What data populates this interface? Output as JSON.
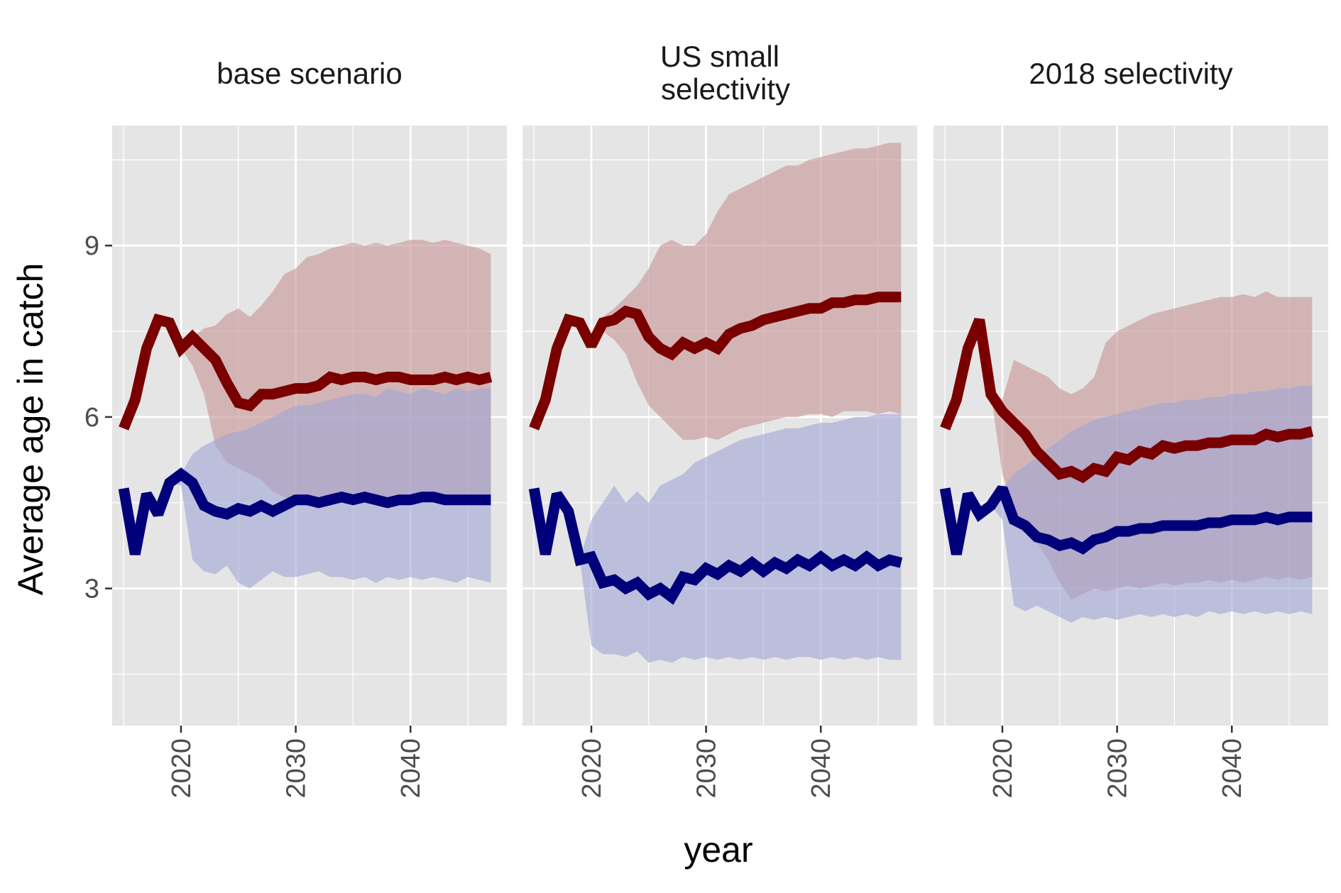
{
  "chart_data": {
    "type": "line",
    "ylabel": "Average age in catch",
    "xlabel": "year",
    "xlim": [
      2014.0,
      2048.4
    ],
    "ylim": [
      0.6,
      11.1
    ],
    "x_ticks": [
      2020,
      2030,
      2040
    ],
    "y_ticks": [
      3,
      6,
      9
    ],
    "colors": {
      "red_line": "#7a0000",
      "red_band": "#c99a9b",
      "blue_line": "#00007a",
      "blue_band": "#9fa5d6",
      "panel_bg": "#e5e5e5",
      "grid": "#ffffff"
    },
    "years": [
      2015,
      2016,
      2017,
      2018,
      2019,
      2020,
      2021,
      2022,
      2023,
      2024,
      2025,
      2026,
      2027,
      2028,
      2029,
      2030,
      2031,
      2032,
      2033,
      2034,
      2035,
      2036,
      2037,
      2038,
      2039,
      2040,
      2041,
      2042,
      2043,
      2044,
      2045,
      2046,
      2047
    ],
    "panels": [
      {
        "title": "base scenario",
        "series": [
          {
            "color": "red",
            "values": [
              5.8,
              6.3,
              7.2,
              7.7,
              7.65,
              7.2,
              7.4,
              7.2,
              7.0,
              6.6,
              6.25,
              6.2,
              6.4,
              6.4,
              6.45,
              6.5,
              6.5,
              6.55,
              6.7,
              6.65,
              6.7,
              6.7,
              6.65,
              6.7,
              6.7,
              6.65,
              6.65,
              6.65,
              6.7,
              6.65,
              6.7,
              6.65,
              6.7
            ],
            "lower": [
              5.8,
              6.3,
              7.2,
              7.7,
              7.65,
              7.2,
              6.9,
              6.4,
              5.5,
              5.2,
              5.1,
              5.0,
              4.9,
              4.7,
              4.6,
              4.55,
              4.6,
              4.55,
              4.6,
              4.55,
              4.6,
              4.55,
              4.6,
              4.55,
              4.6,
              4.55,
              4.6,
              4.55,
              4.6,
              4.55,
              4.6,
              4.55,
              4.6
            ],
            "upper": [
              5.8,
              6.3,
              7.2,
              7.7,
              7.65,
              7.3,
              7.4,
              7.55,
              7.6,
              7.8,
              7.9,
              7.75,
              7.95,
              8.2,
              8.5,
              8.6,
              8.8,
              8.85,
              8.95,
              9.0,
              9.05,
              9.0,
              9.05,
              9.0,
              9.05,
              9.1,
              9.1,
              9.05,
              9.1,
              9.05,
              9.0,
              8.95,
              8.85
            ]
          },
          {
            "color": "blue",
            "values": [
              4.75,
              3.6,
              4.65,
              4.3,
              4.85,
              5.0,
              4.85,
              4.45,
              4.35,
              4.3,
              4.4,
              4.35,
              4.45,
              4.35,
              4.45,
              4.55,
              4.55,
              4.5,
              4.55,
              4.6,
              4.55,
              4.6,
              4.55,
              4.5,
              4.55,
              4.55,
              4.6,
              4.6,
              4.55,
              4.55,
              4.55,
              4.55,
              4.55
            ],
            "lower": [
              4.75,
              3.6,
              4.65,
              4.3,
              4.85,
              4.8,
              3.5,
              3.3,
              3.25,
              3.4,
              3.1,
              3.0,
              3.15,
              3.3,
              3.2,
              3.2,
              3.25,
              3.3,
              3.2,
              3.2,
              3.15,
              3.2,
              3.1,
              3.2,
              3.15,
              3.2,
              3.15,
              3.2,
              3.15,
              3.1,
              3.2,
              3.15,
              3.1
            ],
            "upper": [
              4.75,
              3.6,
              4.65,
              4.3,
              4.85,
              5.0,
              5.35,
              5.5,
              5.6,
              5.7,
              5.75,
              5.8,
              5.9,
              6.0,
              6.1,
              6.2,
              6.2,
              6.25,
              6.3,
              6.35,
              6.4,
              6.4,
              6.35,
              6.5,
              6.45,
              6.4,
              6.5,
              6.45,
              6.4,
              6.5,
              6.45,
              6.5,
              6.5
            ]
          }
        ]
      },
      {
        "title": "US small selectivity",
        "series": [
          {
            "color": "red",
            "values": [
              5.8,
              6.3,
              7.2,
              7.7,
              7.65,
              7.25,
              7.65,
              7.7,
              7.85,
              7.8,
              7.4,
              7.2,
              7.1,
              7.3,
              7.2,
              7.3,
              7.2,
              7.45,
              7.55,
              7.6,
              7.7,
              7.75,
              7.8,
              7.85,
              7.9,
              7.9,
              8.0,
              8.0,
              8.05,
              8.05,
              8.1,
              8.1,
              8.1
            ],
            "lower": [
              5.8,
              6.3,
              7.2,
              7.7,
              7.65,
              7.2,
              7.5,
              7.35,
              7.1,
              6.6,
              6.2,
              6.0,
              5.8,
              5.6,
              5.6,
              5.65,
              5.6,
              5.7,
              5.8,
              5.85,
              5.9,
              5.95,
              6.0,
              6.0,
              6.05,
              6.05,
              6.0,
              6.1,
              6.1,
              6.1,
              6.05,
              6.1,
              6.05
            ],
            "upper": [
              5.8,
              6.3,
              7.2,
              7.7,
              7.65,
              7.35,
              7.75,
              7.9,
              8.1,
              8.3,
              8.6,
              9.0,
              9.1,
              9.0,
              9.0,
              9.2,
              9.6,
              9.9,
              10.0,
              10.1,
              10.2,
              10.3,
              10.4,
              10.4,
              10.5,
              10.55,
              10.6,
              10.65,
              10.7,
              10.7,
              10.75,
              10.8,
              10.8
            ]
          },
          {
            "color": "blue",
            "values": [
              4.75,
              3.6,
              4.65,
              4.35,
              3.5,
              3.55,
              3.1,
              3.15,
              3.0,
              3.1,
              2.9,
              3.0,
              2.85,
              3.2,
              3.15,
              3.35,
              3.25,
              3.4,
              3.3,
              3.45,
              3.3,
              3.45,
              3.35,
              3.5,
              3.4,
              3.55,
              3.4,
              3.5,
              3.4,
              3.55,
              3.4,
              3.5,
              3.45
            ],
            "lower": [
              4.75,
              3.6,
              4.65,
              4.35,
              3.5,
              2.0,
              1.85,
              1.85,
              1.8,
              1.9,
              1.7,
              1.75,
              1.7,
              1.8,
              1.75,
              1.8,
              1.75,
              1.8,
              1.75,
              1.8,
              1.75,
              1.8,
              1.75,
              1.8,
              1.8,
              1.75,
              1.8,
              1.75,
              1.8,
              1.75,
              1.8,
              1.75,
              1.75
            ],
            "upper": [
              4.75,
              3.6,
              4.65,
              4.35,
              3.5,
              4.2,
              4.5,
              4.8,
              4.5,
              4.7,
              4.5,
              4.8,
              4.9,
              5.0,
              5.2,
              5.3,
              5.4,
              5.5,
              5.6,
              5.65,
              5.7,
              5.75,
              5.8,
              5.8,
              5.85,
              5.9,
              5.9,
              5.95,
              6.0,
              6.0,
              6.05,
              6.05,
              6.05
            ]
          }
        ]
      },
      {
        "title": "2018 selectivity",
        "series": [
          {
            "color": "red",
            "values": [
              5.8,
              6.3,
              7.2,
              7.7,
              6.4,
              6.1,
              5.9,
              5.7,
              5.4,
              5.2,
              5.0,
              5.05,
              4.95,
              5.1,
              5.05,
              5.3,
              5.25,
              5.4,
              5.35,
              5.5,
              5.45,
              5.5,
              5.5,
              5.55,
              5.55,
              5.6,
              5.6,
              5.6,
              5.7,
              5.65,
              5.7,
              5.7,
              5.75
            ],
            "lower": [
              5.8,
              6.3,
              7.2,
              7.7,
              6.4,
              5.0,
              4.4,
              4.0,
              3.8,
              3.5,
              3.1,
              2.8,
              2.9,
              3.0,
              2.95,
              3.0,
              3.05,
              3.0,
              3.05,
              3.1,
              3.05,
              3.1,
              3.1,
              3.15,
              3.1,
              3.15,
              3.1,
              3.15,
              3.2,
              3.15,
              3.2,
              3.15,
              3.2
            ],
            "upper": [
              5.8,
              6.3,
              7.2,
              7.7,
              6.5,
              6.3,
              7.0,
              6.9,
              6.8,
              6.7,
              6.5,
              6.4,
              6.5,
              6.7,
              7.3,
              7.5,
              7.6,
              7.7,
              7.8,
              7.85,
              7.9,
              7.95,
              8.0,
              8.05,
              8.1,
              8.1,
              8.15,
              8.1,
              8.2,
              8.1,
              8.1,
              8.1,
              8.1
            ]
          },
          {
            "color": "blue",
            "values": [
              4.75,
              3.6,
              4.65,
              4.3,
              4.45,
              4.75,
              4.2,
              4.1,
              3.9,
              3.85,
              3.75,
              3.8,
              3.7,
              3.85,
              3.9,
              4.0,
              4.0,
              4.05,
              4.05,
              4.1,
              4.1,
              4.1,
              4.1,
              4.15,
              4.15,
              4.2,
              4.2,
              4.2,
              4.25,
              4.2,
              4.25,
              4.25,
              4.25
            ],
            "lower": [
              4.75,
              3.6,
              4.65,
              4.3,
              4.45,
              4.2,
              2.7,
              2.6,
              2.7,
              2.6,
              2.5,
              2.4,
              2.5,
              2.45,
              2.5,
              2.45,
              2.5,
              2.55,
              2.5,
              2.55,
              2.5,
              2.55,
              2.5,
              2.6,
              2.55,
              2.6,
              2.55,
              2.6,
              2.55,
              2.6,
              2.55,
              2.6,
              2.55
            ],
            "upper": [
              4.75,
              3.6,
              4.65,
              4.3,
              4.5,
              4.75,
              5.0,
              5.15,
              5.3,
              5.45,
              5.6,
              5.75,
              5.85,
              5.95,
              6.0,
              6.05,
              6.1,
              6.15,
              6.2,
              6.25,
              6.25,
              6.3,
              6.3,
              6.35,
              6.35,
              6.4,
              6.4,
              6.45,
              6.45,
              6.5,
              6.5,
              6.55,
              6.55
            ]
          }
        ]
      }
    ]
  }
}
